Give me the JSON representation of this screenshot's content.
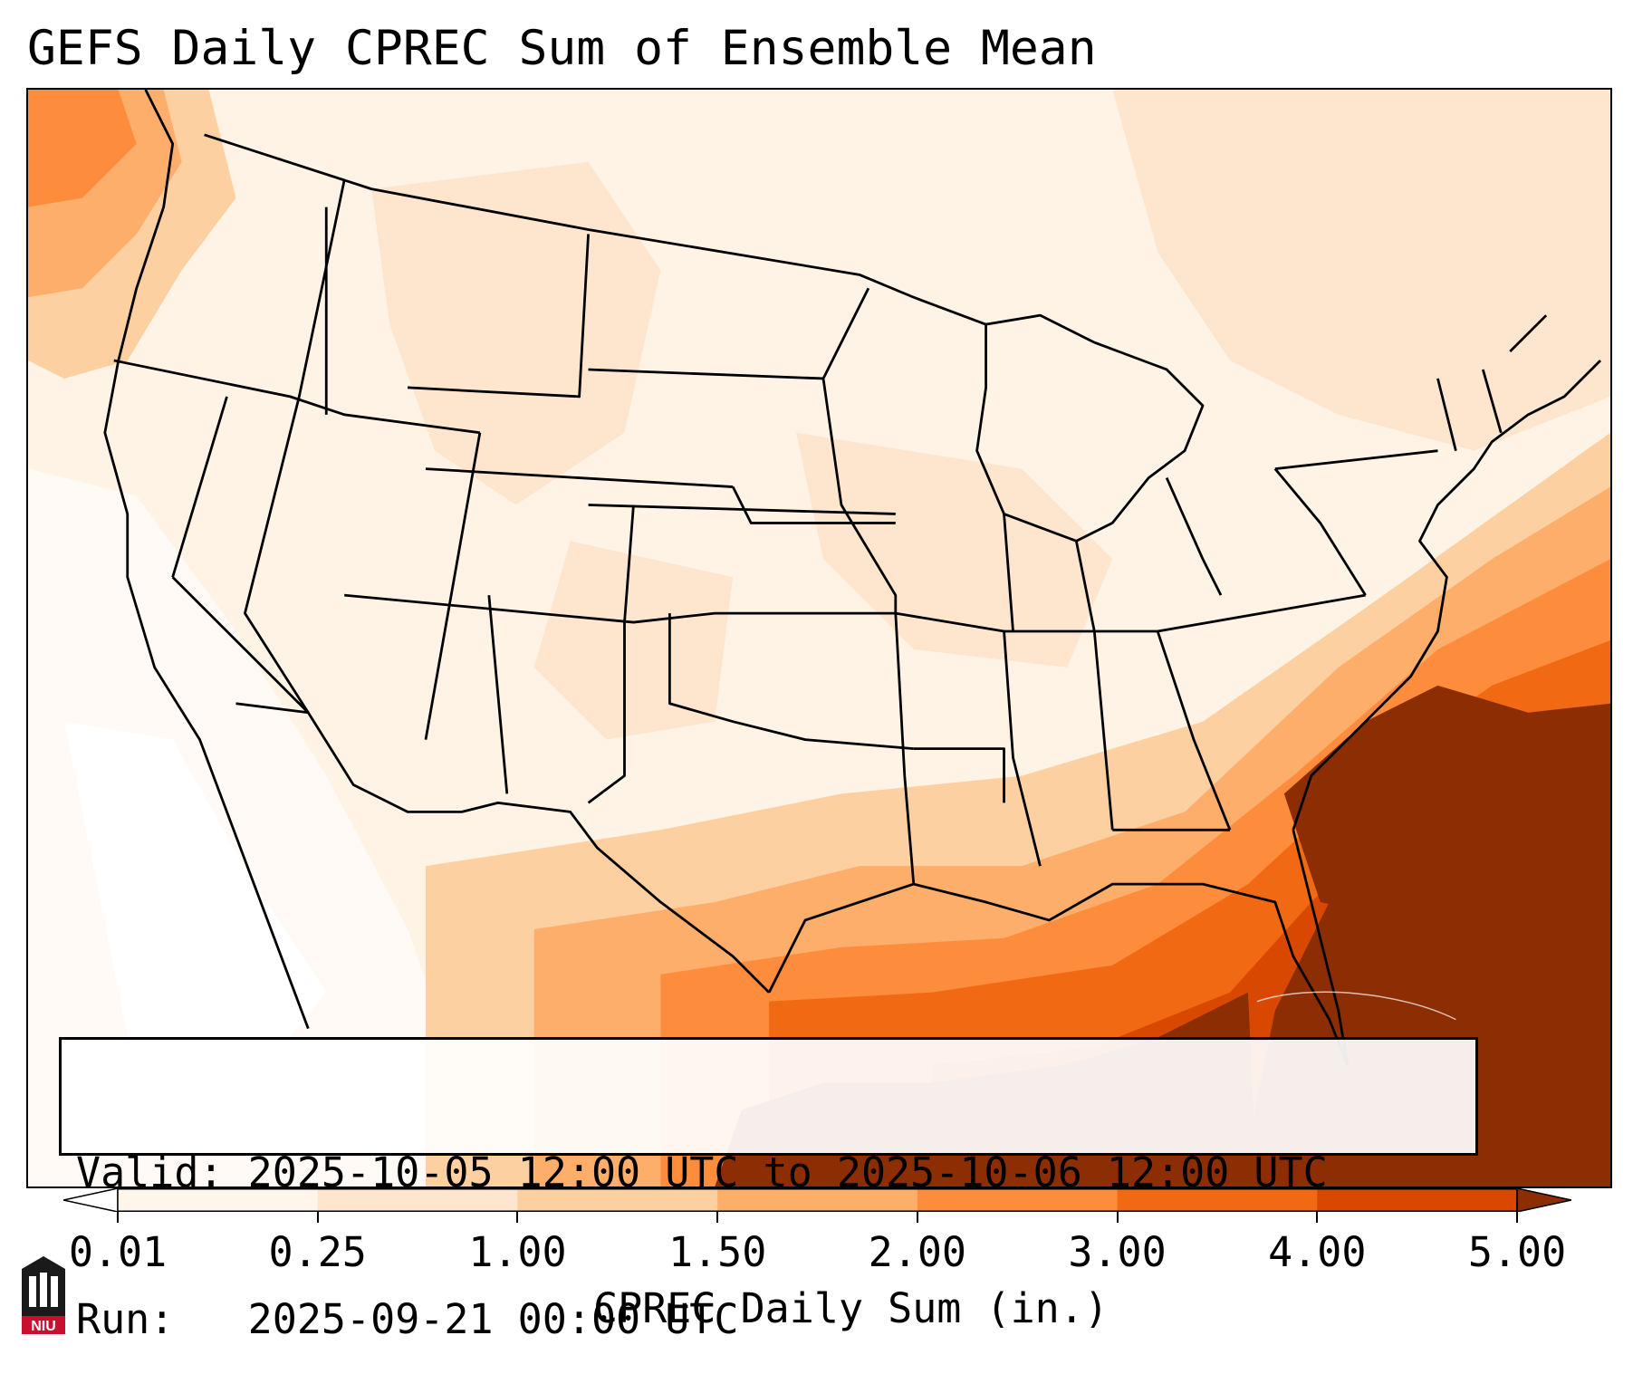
{
  "title": "GEFS Daily CPREC Sum of Ensemble Mean",
  "info": {
    "valid_line": "Valid: 2025-10-05 12:00 UTC to 2025-10-06 12:00 UTC",
    "run_line": "Run:   2025-09-21 00:00 UTC"
  },
  "colorbar": {
    "label": "CPREC Daily Sum (in.)",
    "ticks": [
      "0.01",
      "0.25",
      "1.00",
      "1.50",
      "2.00",
      "3.00",
      "4.00",
      "5.00"
    ],
    "colors": [
      "#fff5eb",
      "#fee6ce",
      "#fdd0a2",
      "#fdae6b",
      "#fd8d3c",
      "#f16913",
      "#d94801",
      "#8c2d04"
    ],
    "extend": "both"
  },
  "logo": {
    "text": "NIU"
  }
}
